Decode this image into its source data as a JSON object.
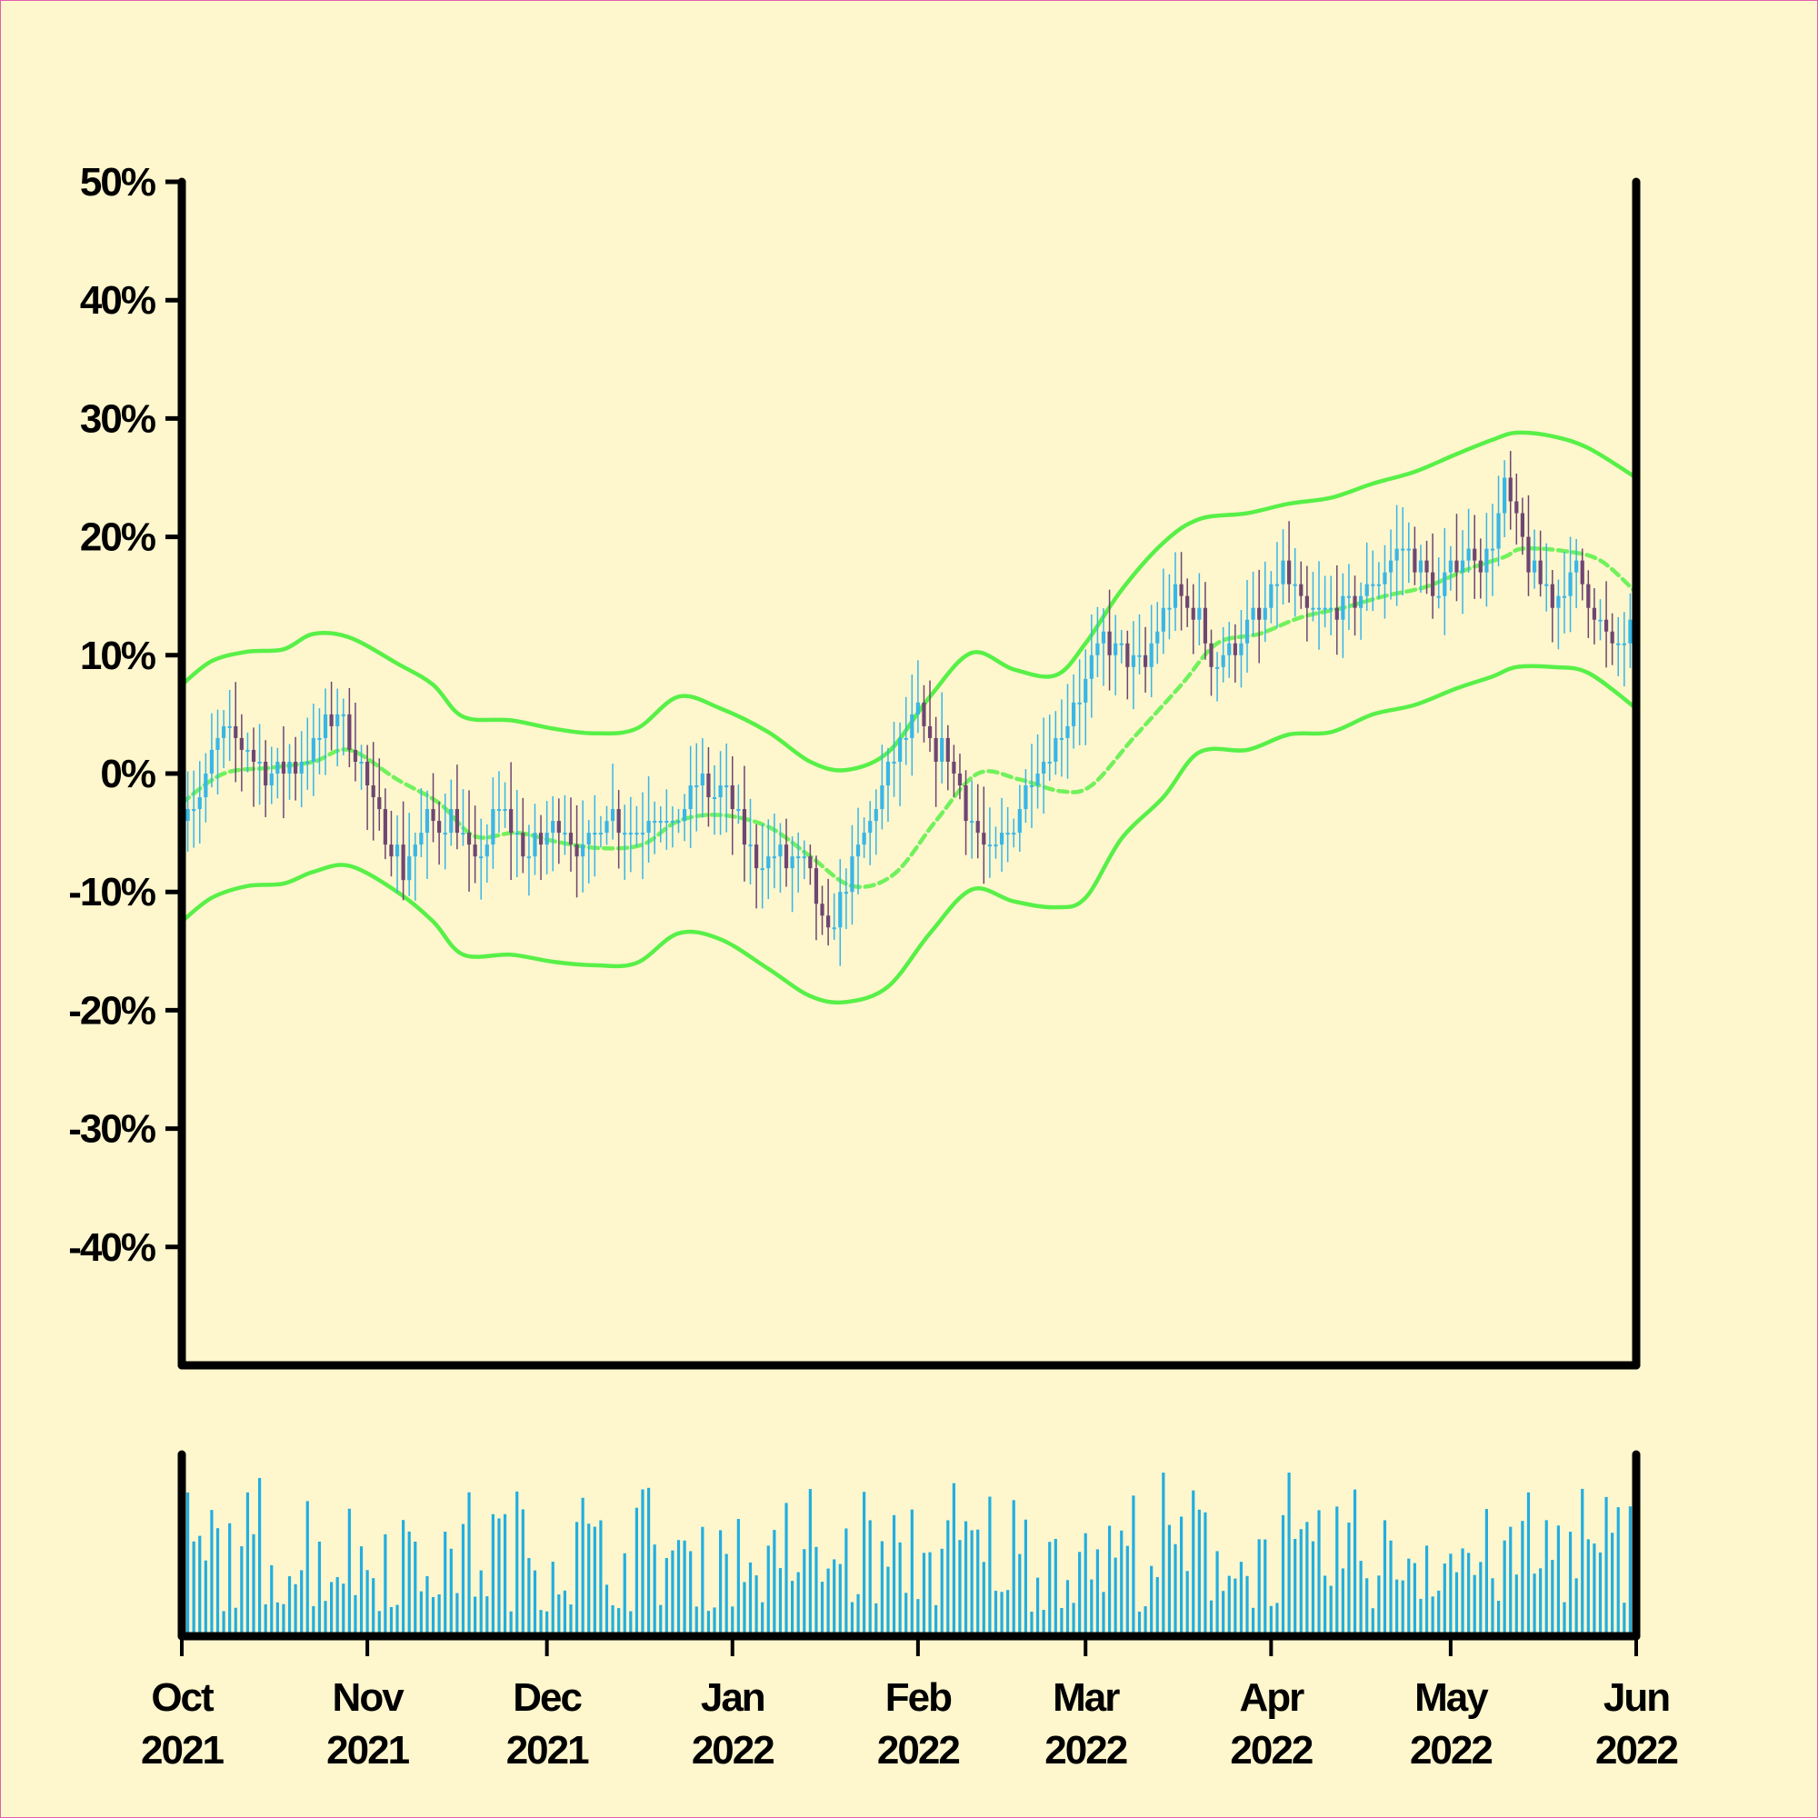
{
  "colors": {
    "background": "#fef6cd",
    "up": "#38b6e8",
    "down": "#6e4673",
    "band": "#58f048",
    "volume": "#22aee0",
    "axis": "#000000"
  },
  "chart_data": {
    "type": "candlestick",
    "title": "",
    "xlabel": "",
    "ylabel": "",
    "y_unit": "%",
    "ylim": [
      -50,
      50
    ],
    "yticks": [
      50,
      40,
      30,
      20,
      10,
      0,
      -10,
      -20,
      -30,
      -40
    ],
    "ytick_labels": [
      "50%",
      "40%",
      "30%",
      "20%",
      "10%",
      "0%",
      "-10%",
      "-20%",
      "-30%",
      "-40%"
    ],
    "xlim": [
      "2021-10-01",
      "2022-06-01"
    ],
    "xticks": [
      {
        "date": "2021-10-01",
        "month": "Oct",
        "year": "2021"
      },
      {
        "date": "2021-11-01",
        "month": "Nov",
        "year": "2021"
      },
      {
        "date": "2021-12-01",
        "month": "Dec",
        "year": "2021"
      },
      {
        "date": "2022-01-01",
        "month": "Jan",
        "year": "2022"
      },
      {
        "date": "2022-02-01",
        "month": "Feb",
        "year": "2022"
      },
      {
        "date": "2022-03-01",
        "month": "Mar",
        "year": "2022"
      },
      {
        "date": "2022-04-01",
        "month": "Apr",
        "year": "2022"
      },
      {
        "date": "2022-05-01",
        "month": "May",
        "year": "2022"
      },
      {
        "date": "2022-06-01",
        "month": "Jun",
        "year": "2022"
      }
    ],
    "price_path": [
      {
        "date": "2021-10-01",
        "close": -3
      },
      {
        "date": "2021-10-04",
        "close": -2
      },
      {
        "date": "2021-10-07",
        "close": 3
      },
      {
        "date": "2021-10-12",
        "close": 2
      },
      {
        "date": "2021-10-16",
        "close": 0
      },
      {
        "date": "2021-10-20",
        "close": 1
      },
      {
        "date": "2021-10-24",
        "close": 3
      },
      {
        "date": "2021-10-27",
        "close": 5
      },
      {
        "date": "2021-10-30",
        "close": 2
      },
      {
        "date": "2021-11-03",
        "close": -4
      },
      {
        "date": "2021-11-07",
        "close": -8
      },
      {
        "date": "2021-11-11",
        "close": -4
      },
      {
        "date": "2021-11-16",
        "close": -4
      },
      {
        "date": "2021-11-19",
        "close": -8
      },
      {
        "date": "2021-11-23",
        "close": -3
      },
      {
        "date": "2021-11-28",
        "close": -7
      },
      {
        "date": "2021-12-03",
        "close": -4
      },
      {
        "date": "2021-12-07",
        "close": -7
      },
      {
        "date": "2021-12-11",
        "close": -3
      },
      {
        "date": "2021-12-15",
        "close": -5
      },
      {
        "date": "2021-12-19",
        "close": -3
      },
      {
        "date": "2021-12-22",
        "close": -5
      },
      {
        "date": "2021-12-26",
        "close": -1
      },
      {
        "date": "2021-12-31",
        "close": -2
      },
      {
        "date": "2022-01-04",
        "close": -7
      },
      {
        "date": "2022-01-08",
        "close": -7
      },
      {
        "date": "2022-01-13",
        "close": -8
      },
      {
        "date": "2022-01-17",
        "close": -14
      },
      {
        "date": "2022-01-20",
        "close": -9
      },
      {
        "date": "2022-01-24",
        "close": -4
      },
      {
        "date": "2022-01-28",
        "close": 1
      },
      {
        "date": "2022-02-01",
        "close": 5
      },
      {
        "date": "2022-02-03",
        "close": 2
      },
      {
        "date": "2022-02-06",
        "close": 2
      },
      {
        "date": "2022-02-09",
        "close": -3
      },
      {
        "date": "2022-02-13",
        "close": -7
      },
      {
        "date": "2022-02-16",
        "close": -5
      },
      {
        "date": "2022-02-20",
        "close": 0
      },
      {
        "date": "2022-02-24",
        "close": 3
      },
      {
        "date": "2022-02-28",
        "close": 7
      },
      {
        "date": "2022-03-04",
        "close": 11
      },
      {
        "date": "2022-03-08",
        "close": 10
      },
      {
        "date": "2022-03-11",
        "close": 9
      },
      {
        "date": "2022-03-15",
        "close": 15
      },
      {
        "date": "2022-03-19",
        "close": 14
      },
      {
        "date": "2022-03-23",
        "close": 9
      },
      {
        "date": "2022-03-27",
        "close": 12
      },
      {
        "date": "2022-03-30",
        "close": 13
      },
      {
        "date": "2022-04-03",
        "close": 17
      },
      {
        "date": "2022-04-07",
        "close": 13
      },
      {
        "date": "2022-04-10",
        "close": 14
      },
      {
        "date": "2022-04-14",
        "close": 14
      },
      {
        "date": "2022-04-18",
        "close": 16
      },
      {
        "date": "2022-04-22",
        "close": 19
      },
      {
        "date": "2022-04-25",
        "close": 18
      },
      {
        "date": "2022-04-29",
        "close": 15
      },
      {
        "date": "2022-05-03",
        "close": 19
      },
      {
        "date": "2022-05-07",
        "close": 18
      },
      {
        "date": "2022-05-10",
        "close": 24
      },
      {
        "date": "2022-05-14",
        "close": 18
      },
      {
        "date": "2022-05-18",
        "close": 15
      },
      {
        "date": "2022-05-22",
        "close": 17
      },
      {
        "date": "2022-05-25",
        "close": 14
      },
      {
        "date": "2022-05-28",
        "close": 10
      },
      {
        "date": "2022-06-01",
        "close": 13
      }
    ],
    "bands": {
      "upper": [
        {
          "date": "2021-10-01",
          "value": 7.5
        },
        {
          "date": "2021-10-06",
          "value": 9.5
        },
        {
          "date": "2021-10-12",
          "value": 10.3
        },
        {
          "date": "2021-10-18",
          "value": 10.5
        },
        {
          "date": "2021-10-23",
          "value": 11.8
        },
        {
          "date": "2021-10-29",
          "value": 11.5
        },
        {
          "date": "2021-11-06",
          "value": 9.3
        },
        {
          "date": "2021-11-12",
          "value": 7.5
        },
        {
          "date": "2021-11-17",
          "value": 4.8
        },
        {
          "date": "2021-11-25",
          "value": 4.5
        },
        {
          "date": "2021-12-02",
          "value": 3.8
        },
        {
          "date": "2021-12-09",
          "value": 3.4
        },
        {
          "date": "2021-12-16",
          "value": 3.8
        },
        {
          "date": "2021-12-23",
          "value": 6.5
        },
        {
          "date": "2021-12-30",
          "value": 5.5
        },
        {
          "date": "2022-01-07",
          "value": 3.5
        },
        {
          "date": "2022-01-14",
          "value": 1.0
        },
        {
          "date": "2022-01-20",
          "value": 0.3
        },
        {
          "date": "2022-01-27",
          "value": 1.8
        },
        {
          "date": "2022-02-03",
          "value": 6.5
        },
        {
          "date": "2022-02-10",
          "value": 10.2
        },
        {
          "date": "2022-02-17",
          "value": 8.8
        },
        {
          "date": "2022-02-24",
          "value": 8.3
        },
        {
          "date": "2022-03-01",
          "value": 11.0
        },
        {
          "date": "2022-03-07",
          "value": 15.5
        },
        {
          "date": "2022-03-14",
          "value": 19.5
        },
        {
          "date": "2022-03-20",
          "value": 21.5
        },
        {
          "date": "2022-03-28",
          "value": 22.0
        },
        {
          "date": "2022-04-04",
          "value": 22.8
        },
        {
          "date": "2022-04-11",
          "value": 23.3
        },
        {
          "date": "2022-04-18",
          "value": 24.5
        },
        {
          "date": "2022-04-25",
          "value": 25.5
        },
        {
          "date": "2022-05-02",
          "value": 27.0
        },
        {
          "date": "2022-05-08",
          "value": 28.2
        },
        {
          "date": "2022-05-12",
          "value": 28.8
        },
        {
          "date": "2022-05-18",
          "value": 28.5
        },
        {
          "date": "2022-05-24",
          "value": 27.5
        },
        {
          "date": "2022-06-01",
          "value": 25.0
        }
      ],
      "middle": [
        {
          "date": "2021-10-01",
          "value": -2.5
        },
        {
          "date": "2021-10-08",
          "value": 0.0
        },
        {
          "date": "2021-10-16",
          "value": 0.5
        },
        {
          "date": "2021-10-23",
          "value": 1.0
        },
        {
          "date": "2021-10-29",
          "value": 2.0
        },
        {
          "date": "2021-11-06",
          "value": -0.5
        },
        {
          "date": "2021-11-13",
          "value": -2.5
        },
        {
          "date": "2021-11-19",
          "value": -5.3
        },
        {
          "date": "2021-11-26",
          "value": -5.0
        },
        {
          "date": "2021-12-03",
          "value": -5.8
        },
        {
          "date": "2021-12-10",
          "value": -6.3
        },
        {
          "date": "2021-12-17",
          "value": -6.0
        },
        {
          "date": "2021-12-23",
          "value": -4.0
        },
        {
          "date": "2021-12-30",
          "value": -3.5
        },
        {
          "date": "2022-01-07",
          "value": -4.5
        },
        {
          "date": "2022-01-14",
          "value": -7.0
        },
        {
          "date": "2022-01-21",
          "value": -9.5
        },
        {
          "date": "2022-01-28",
          "value": -8.5
        },
        {
          "date": "2022-02-04",
          "value": -4.0
        },
        {
          "date": "2022-02-11",
          "value": 0.0
        },
        {
          "date": "2022-02-18",
          "value": -0.5
        },
        {
          "date": "2022-02-25",
          "value": -1.5
        },
        {
          "date": "2022-03-02",
          "value": -1.0
        },
        {
          "date": "2022-03-09",
          "value": 3.0
        },
        {
          "date": "2022-03-17",
          "value": 7.5
        },
        {
          "date": "2022-03-23",
          "value": 11.0
        },
        {
          "date": "2022-03-30",
          "value": 11.8
        },
        {
          "date": "2022-04-06",
          "value": 13.2
        },
        {
          "date": "2022-04-13",
          "value": 14.0
        },
        {
          "date": "2022-04-20",
          "value": 15.0
        },
        {
          "date": "2022-04-27",
          "value": 15.8
        },
        {
          "date": "2022-05-04",
          "value": 17.3
        },
        {
          "date": "2022-05-10",
          "value": 18.3
        },
        {
          "date": "2022-05-13",
          "value": 19.0
        },
        {
          "date": "2022-05-20",
          "value": 18.8
        },
        {
          "date": "2022-05-26",
          "value": 18.0
        },
        {
          "date": "2022-06-01",
          "value": 15.3
        }
      ],
      "lower": [
        {
          "date": "2021-10-01",
          "value": -12.5
        },
        {
          "date": "2021-10-06",
          "value": -10.5
        },
        {
          "date": "2021-10-12",
          "value": -9.5
        },
        {
          "date": "2021-10-18",
          "value": -9.3
        },
        {
          "date": "2021-10-23",
          "value": -8.3
        },
        {
          "date": "2021-10-29",
          "value": -7.8
        },
        {
          "date": "2021-11-06",
          "value": -10.0
        },
        {
          "date": "2021-11-12",
          "value": -12.5
        },
        {
          "date": "2021-11-17",
          "value": -15.3
        },
        {
          "date": "2021-11-25",
          "value": -15.3
        },
        {
          "date": "2021-12-02",
          "value": -15.9
        },
        {
          "date": "2021-12-09",
          "value": -16.2
        },
        {
          "date": "2021-12-16",
          "value": -16.0
        },
        {
          "date": "2021-12-23",
          "value": -13.5
        },
        {
          "date": "2021-12-30",
          "value": -14.0
        },
        {
          "date": "2022-01-07",
          "value": -16.5
        },
        {
          "date": "2022-01-14",
          "value": -18.8
        },
        {
          "date": "2022-01-20",
          "value": -19.3
        },
        {
          "date": "2022-01-27",
          "value": -18.0
        },
        {
          "date": "2022-02-03",
          "value": -13.5
        },
        {
          "date": "2022-02-10",
          "value": -9.8
        },
        {
          "date": "2022-02-17",
          "value": -10.8
        },
        {
          "date": "2022-02-24",
          "value": -11.3
        },
        {
          "date": "2022-03-01",
          "value": -10.5
        },
        {
          "date": "2022-03-07",
          "value": -5.5
        },
        {
          "date": "2022-03-14",
          "value": -2.0
        },
        {
          "date": "2022-03-20",
          "value": 1.8
        },
        {
          "date": "2022-03-28",
          "value": 2.0
        },
        {
          "date": "2022-04-04",
          "value": 3.3
        },
        {
          "date": "2022-04-11",
          "value": 3.5
        },
        {
          "date": "2022-04-18",
          "value": 5.0
        },
        {
          "date": "2022-04-25",
          "value": 5.8
        },
        {
          "date": "2022-05-02",
          "value": 7.2
        },
        {
          "date": "2022-05-08",
          "value": 8.2
        },
        {
          "date": "2022-05-12",
          "value": 9.0
        },
        {
          "date": "2022-05-18",
          "value": 9.0
        },
        {
          "date": "2022-05-24",
          "value": 8.5
        },
        {
          "date": "2022-06-01",
          "value": 5.5
        }
      ]
    },
    "volume": {
      "unit": "relative (0-1)",
      "ylim": [
        0,
        1
      ],
      "seed": 7
    }
  }
}
